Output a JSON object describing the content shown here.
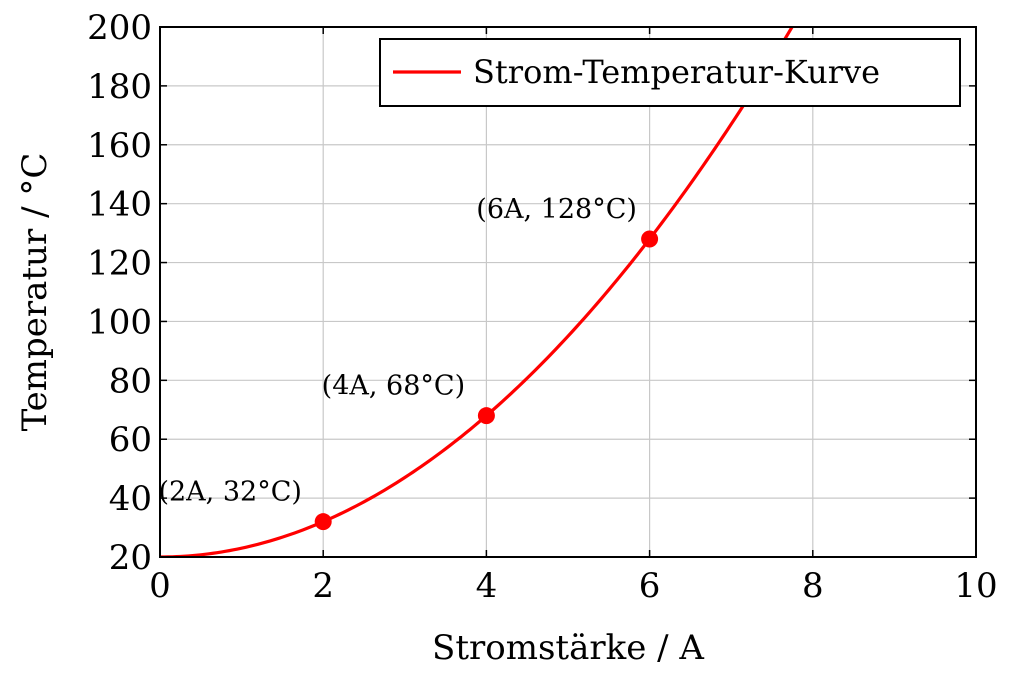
{
  "chart_data": {
    "type": "line",
    "xlabel": "Stromstärke / A",
    "ylabel": "Temperatur / °C",
    "xlim": [
      0,
      10
    ],
    "ylim": [
      20,
      200
    ],
    "xticks": [
      "0",
      "2",
      "4",
      "6",
      "8",
      "10"
    ],
    "yticks": [
      "20",
      "40",
      "60",
      "80",
      "100",
      "120",
      "140",
      "160",
      "180",
      "200"
    ],
    "grid": true,
    "legend_position": "top-right",
    "series": [
      {
        "name": "Strom-Temperatur-Kurve",
        "color": "#ff0000",
        "formula": "T = 20 + 3 * I^2",
        "x": [
          0,
          1,
          2,
          3,
          4,
          5,
          6,
          7,
          7.74
        ],
        "y": [
          20,
          23,
          32,
          47,
          68,
          95,
          128,
          167,
          200
        ]
      }
    ],
    "marked_points": [
      {
        "x": 2,
        "y": 32,
        "label": "(2A, 32°C)"
      },
      {
        "x": 4,
        "y": 68,
        "label": "(4A, 68°C)"
      },
      {
        "x": 6,
        "y": 128,
        "label": "(6A, 128°C)"
      }
    ]
  }
}
